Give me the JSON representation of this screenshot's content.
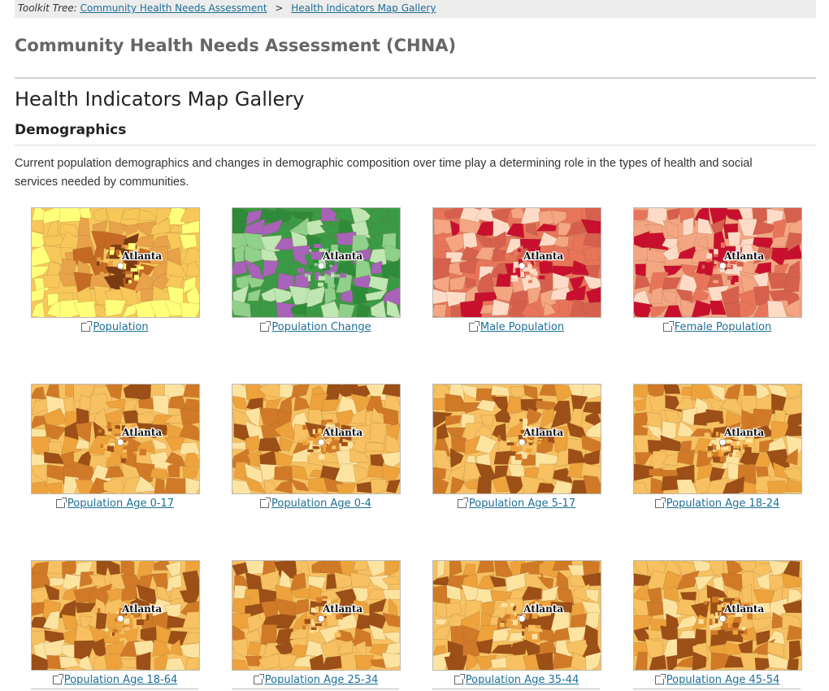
{
  "breadcrumb": {
    "lead": "Toolkit Tree:",
    "separator": ">",
    "items": [
      {
        "label": "Community Health Needs Assessment"
      },
      {
        "label": "Health Indicators Map Gallery"
      }
    ]
  },
  "site_title": "Community Health Needs Assessment (CHNA)",
  "page_heading": "Health Indicators Map Gallery",
  "section": {
    "heading": "Demographics",
    "intro": "Current population demographics and changes in demographic composition over time play a determining role in the types of health and social services needed by communities."
  },
  "map_city_label": "Atlanta",
  "maps": [
    {
      "label": "Population",
      "palette": [
        "#ffff7a",
        "#f7c75a",
        "#e8a24a",
        "#c46a24",
        "#7a3b12"
      ],
      "icon": "external-link-icon"
    },
    {
      "label": "Population Change",
      "palette": [
        "#2e8b3a",
        "#3b9a45",
        "#8fd08a",
        "#bfe6b3",
        "#a862b8"
      ],
      "icon": "external-link-icon"
    },
    {
      "label": "Male Population",
      "palette": [
        "#f4a582",
        "#e8755a",
        "#d6604d",
        "#c8102e",
        "#fddbc7"
      ],
      "icon": "external-link-icon"
    },
    {
      "label": "Female Population",
      "palette": [
        "#fddbc7",
        "#f4a582",
        "#e8755a",
        "#d6604d",
        "#c8102e"
      ],
      "icon": "external-link-icon"
    },
    {
      "label": "Population Age 0-17",
      "palette": [
        "#fde3a0",
        "#f7c060",
        "#eda23c",
        "#d07a28",
        "#9c4f16"
      ],
      "icon": "external-link-icon"
    },
    {
      "label": "Population Age 0-4",
      "palette": [
        "#fde3a0",
        "#f7c060",
        "#eda23c",
        "#d07a28",
        "#9c4f16"
      ],
      "icon": "external-link-icon"
    },
    {
      "label": "Population Age 5-17",
      "palette": [
        "#fde3a0",
        "#f7c060",
        "#eda23c",
        "#d07a28",
        "#9c4f16"
      ],
      "icon": "external-link-icon"
    },
    {
      "label": "Population Age 18-24",
      "palette": [
        "#fde3a0",
        "#f7c060",
        "#eda23c",
        "#d07a28",
        "#9c4f16"
      ],
      "icon": "external-link-icon"
    },
    {
      "label": "Population Age 18-64",
      "palette": [
        "#fde3a0",
        "#f7c060",
        "#eda23c",
        "#d07a28",
        "#9c4f16"
      ],
      "icon": "external-link-icon"
    },
    {
      "label": "Population Age 25-34",
      "palette": [
        "#fde3a0",
        "#f7c060",
        "#eda23c",
        "#d07a28",
        "#9c4f16"
      ],
      "icon": "external-link-icon"
    },
    {
      "label": "Population Age 35-44",
      "palette": [
        "#fde3a0",
        "#f7c060",
        "#eda23c",
        "#d07a28",
        "#9c4f16"
      ],
      "icon": "external-link-icon"
    },
    {
      "label": "Population Age 45-54",
      "palette": [
        "#fde3a0",
        "#f7c060",
        "#eda23c",
        "#d07a28",
        "#9c4f16"
      ],
      "icon": "external-link-icon"
    }
  ],
  "colors": {
    "link": "#1d6f97",
    "title": "#666666",
    "breadcrumb_bg": "#ececec"
  }
}
